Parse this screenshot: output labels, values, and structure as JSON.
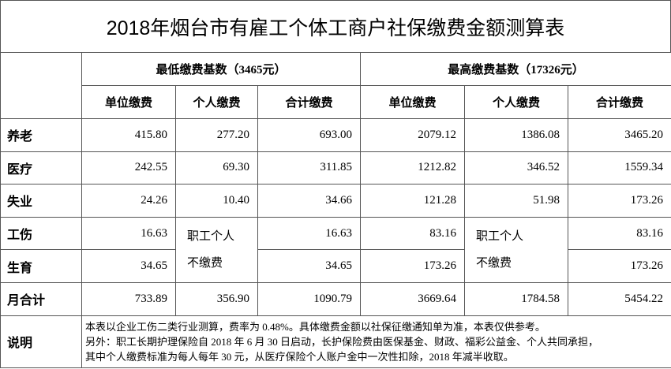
{
  "title": "2018年烟台市有雇工个体工商户社保缴费金额测算表",
  "table": {
    "groups": [
      "最低缴费基数（3465元）",
      "最高缴费基数（17326元）"
    ],
    "columns": [
      "单位缴费",
      "个人缴费",
      "合计缴费",
      "单位缴费",
      "个人缴费",
      "合计缴费"
    ],
    "rows": [
      {
        "label": "养老",
        "cells": [
          "415.80",
          "277.20",
          "693.00",
          "2079.12",
          "1386.08",
          "3465.20"
        ]
      },
      {
        "label": "医疗",
        "cells": [
          "242.55",
          "69.30",
          "311.85",
          "1212.82",
          "346.52",
          "1559.34"
        ]
      },
      {
        "label": "失业",
        "cells": [
          "24.26",
          "10.40",
          "34.66",
          "121.28",
          "51.98",
          "173.26"
        ]
      },
      {
        "label": "工伤",
        "cells": [
          "16.63",
          "16.63",
          "83.16",
          "83.16"
        ]
      },
      {
        "label": "生育",
        "cells": [
          "34.65",
          "34.65",
          "173.26",
          "173.26"
        ]
      },
      {
        "label": "月合计",
        "cells": [
          "733.89",
          "356.90",
          "1090.79",
          "3669.64",
          "1784.58",
          "5454.22"
        ]
      }
    ],
    "merged_cell": [
      "职工个人",
      "不缴费"
    ],
    "notes": {
      "label": "说明",
      "lines": [
        "本表以企业工伤二类行业测算，费率为 0.48%。具体缴费金额以社保征缴通知单为准，本表仅供参考。",
        "另外：职工长期护理保险自 2018 年 6 月 30 日启动，长护保险费由医保基金、财政、福彩公益金、个人共同承担，",
        "其中个人缴费标准为每人每年 30 元，从医疗保险个人账户金中一次性扣除，2018 年减半收取。"
      ]
    }
  }
}
